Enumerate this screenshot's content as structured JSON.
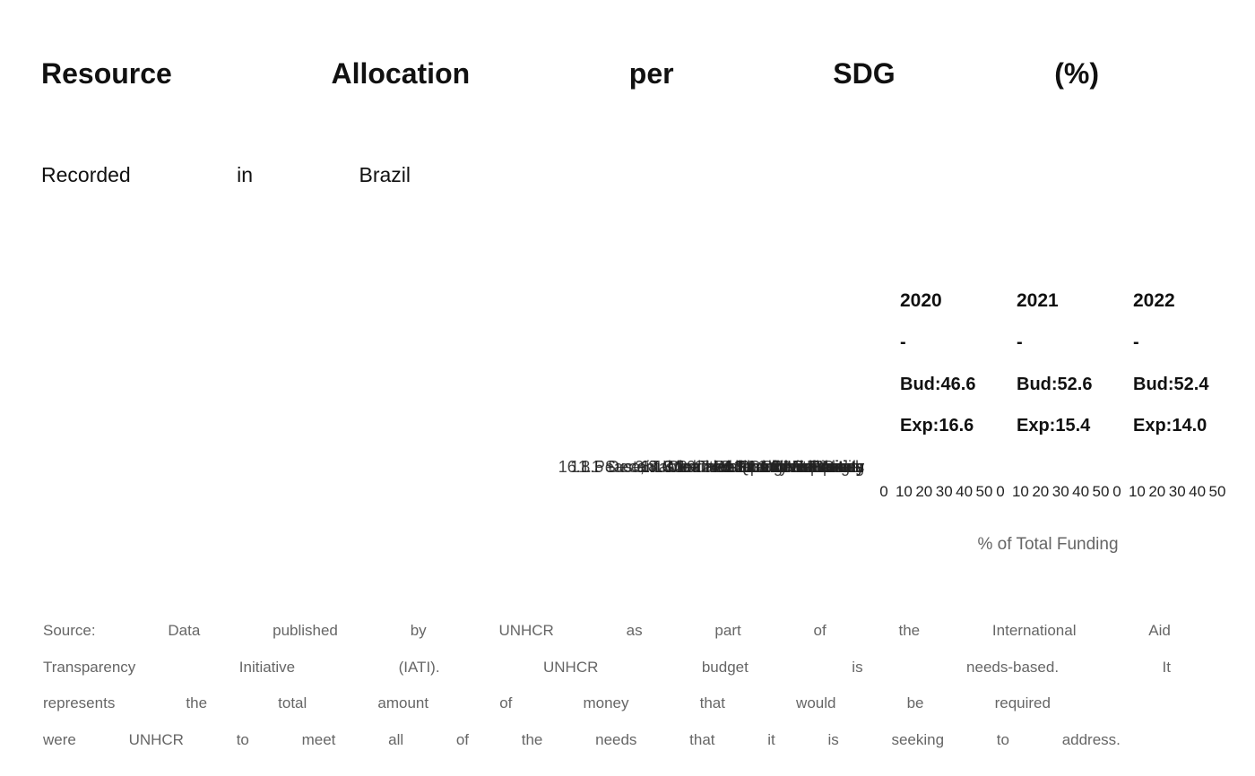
{
  "title": [
    "Resource",
    "Allocation",
    "per",
    "SDG",
    "(%)"
  ],
  "subtitle": [
    "Recorded",
    "in",
    "Brazil"
  ],
  "chart_data": {
    "type": "bar",
    "orientation": "horizontal",
    "facets": [
      {
        "year": "2020",
        "rows": [
          "-",
          "Bud:46.6",
          "Exp:16.6"
        ],
        "budget": 46.6,
        "expenditure": 16.6
      },
      {
        "year": "2021",
        "rows": [
          "-",
          "Bud:52.6",
          "Exp:15.4"
        ],
        "budget": 52.6,
        "expenditure": 15.4
      },
      {
        "year": "2022",
        "rows": [
          "-",
          "Bud:52.4",
          "Exp:14.0"
        ],
        "budget": 52.4,
        "expenditure": 14.0
      }
    ],
    "category_labels_overlapping": [
      "16.1 Peace, Justice and Strong Institutions",
      "10.7 Reduced Inequalities",
      "1.3 No Poverty",
      "4.1 Quality Education",
      "3.8 Good Health and Well-being",
      "8.5 Decent Work and Economic Growth",
      "5.2 Gender Equality",
      "6.1 Clean Water and Sanitation",
      "11.1 Sustainable Cities and Communities",
      "2.1 Zero Hunger",
      "17.3 Partnerships for the Goals",
      "13.1 Climate Action"
    ],
    "x_ticks": [
      "0",
      "10",
      "20",
      "30",
      "40",
      "50"
    ],
    "xlim": [
      0,
      50
    ],
    "xlabel": "% of Total Funding"
  },
  "source": [
    [
      "Source:",
      "Data",
      "published",
      "by",
      "UNHCR",
      "as",
      "part",
      "of",
      "the",
      "International",
      "Aid"
    ],
    [
      "Transparency",
      "Initiative",
      "(IATI).",
      "UNHCR",
      "budget",
      "is",
      "needs-based.",
      "It"
    ],
    [
      "represents",
      "the",
      "total",
      "amount",
      "of",
      "money",
      "that",
      "would",
      "be",
      "required"
    ],
    [
      "were",
      "UNHCR",
      "to",
      "meet",
      "all",
      "of",
      "the",
      "needs",
      "that",
      "it",
      "is",
      "seeking",
      "to",
      "address."
    ]
  ]
}
